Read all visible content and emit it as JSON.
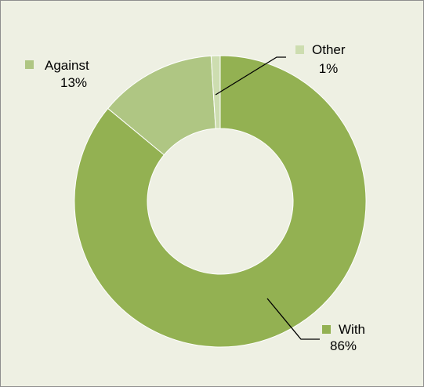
{
  "chart_data": {
    "type": "pie",
    "donut": true,
    "categories": [
      "With",
      "Against",
      "Other"
    ],
    "values": [
      86,
      13,
      1
    ],
    "value_labels": [
      "86%",
      "13%",
      "1%"
    ],
    "colors": [
      "#93b152",
      "#afc683",
      "#cdddb0"
    ],
    "title": "",
    "legend": "none"
  },
  "colors": {
    "background": "#eef0e3",
    "border": "#8e8e8e",
    "slice_border": "#ffffff",
    "leader_line": "#000000"
  }
}
